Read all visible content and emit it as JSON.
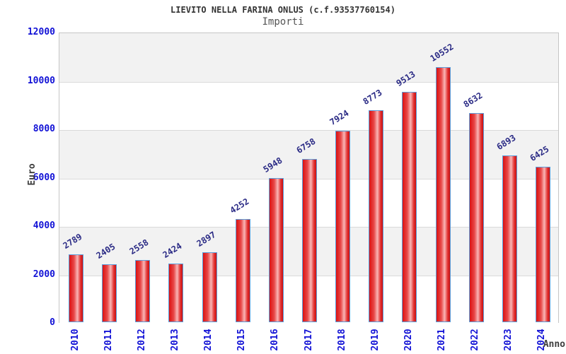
{
  "chart_data": {
    "type": "bar",
    "title": "LIEVITO NELLA FARINA ONLUS (c.f.93537760154)",
    "subtitle": "Importi",
    "xlabel": "Anno",
    "ylabel": "Euro",
    "categories": [
      "2010",
      "2011",
      "2012",
      "2013",
      "2014",
      "2015",
      "2016",
      "2017",
      "2018",
      "2019",
      "2020",
      "2021",
      "2022",
      "2023",
      "2024"
    ],
    "values": [
      2789,
      2405,
      2558,
      2424,
      2897,
      4252,
      5948,
      6758,
      7924,
      8773,
      9513,
      10552,
      8632,
      6893,
      6425
    ],
    "ylim": [
      0,
      12000
    ],
    "yticks": [
      0,
      2000,
      4000,
      6000,
      8000,
      10000,
      12000
    ],
    "grid": "alternating-horizontal-bands",
    "legend": "none",
    "colors": {
      "bar_edge": "#5b9fdc",
      "bar_main": "#db1212",
      "bar_highlight": "#f9b6b6",
      "tick_label": "#1212d6",
      "value_label": "#2a2a85",
      "axis_title": "#3c3c3c",
      "band": "#f2f2f2",
      "gridline": "#dadada",
      "plot_border": "#c6c6c6"
    }
  }
}
